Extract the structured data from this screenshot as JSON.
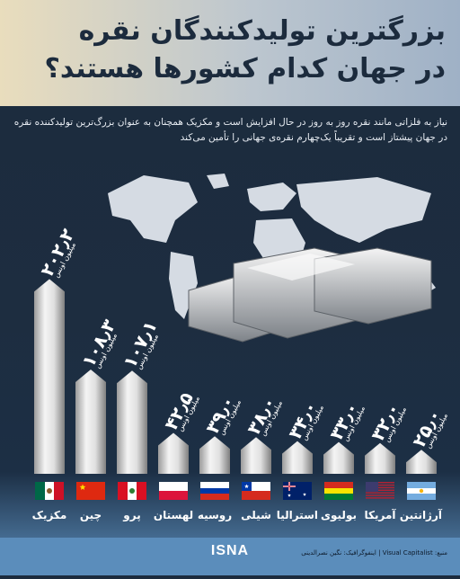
{
  "header": {
    "title_line1": "بزرگترین تولیدکنندگان نقره",
    "title_line2": "در جهان کدام کشورها هستند؟",
    "subtitle": "نیاز به فلزاتی مانند نقره روز به روز در حال افزایش است و مکزیک همچنان به عنوان بزرگ‌ترین تولیدکننده نقره در جهان پیشتاز است و تقریباً یک‌چهارم نقره‌ی جهانی را تأمین می‌کند"
  },
  "chart_data": {
    "type": "bar",
    "unit_label": "میلیون اونس",
    "categories": [
      "مکزیک",
      "چین",
      "پرو",
      "لهستان",
      "روسیه",
      "شیلی",
      "استرالیا",
      "بولیوی",
      "آمریکا",
      "آرژانتین"
    ],
    "values": [
      202.2,
      108.3,
      107.1,
      42.5,
      39.0,
      38.0,
      34.0,
      33.0,
      32.0,
      25.0
    ],
    "value_labels": [
      "۲۰۲٫۲",
      "۱۰۸٫۳",
      "۱۰۷٫۱",
      "۴۲٫۵",
      "۳۹٫۰",
      "۳۸٫۰",
      "۳۴٫۰",
      "۳۳٫۰",
      "۳۲٫۰",
      "۲۵٫۰"
    ],
    "ylim": [
      0,
      210
    ]
  },
  "flags": [
    "mexico-flag",
    "china-flag",
    "peru-flag",
    "poland-flag",
    "russia-flag",
    "chile-flag",
    "australia-flag",
    "bolivia-flag",
    "usa-flag",
    "argentina-flag"
  ],
  "footer": {
    "credit": "منبع: Visual Capitalist | اینفوگرافیک: نگین نصرالدینی",
    "logo": "ISNA"
  },
  "colors": {
    "background": "#1c2b3d",
    "title": "#1c2b3d",
    "bar_light": "#f2f2f2",
    "bar_dark": "#8c8c8c"
  }
}
